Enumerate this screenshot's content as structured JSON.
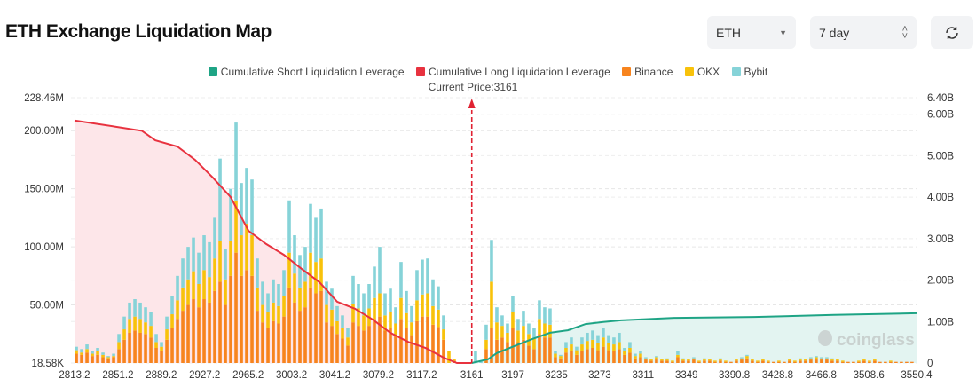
{
  "header": {
    "title": "ETH Exchange Liquidation Map",
    "coin_select": "ETH",
    "period_select": "7 day",
    "refresh_icon": "refresh-icon"
  },
  "watermark": "coinglass",
  "colors": {
    "short": "#1ea485",
    "long": "#e8323f",
    "binance": "#f7841e",
    "okx": "#f8c20b",
    "bybit": "#86d3d8"
  },
  "chart_data": {
    "type": "bar",
    "legend": [
      "Cumulative Short Liquidation Leverage",
      "Cumulative Long Liquidation Leverage",
      "Binance",
      "OKX",
      "Bybit"
    ],
    "legend_placement": "top",
    "current_price_label": "Current Price:3161",
    "current_price": 3161,
    "x_ticks": [
      "2813.2",
      "2851.2",
      "2889.2",
      "2927.2",
      "2965.2",
      "3003.2",
      "3041.2",
      "3079.2",
      "3117.2",
      "3161",
      "3197",
      "3235",
      "3273",
      "3311",
      "3349",
      "3390.8",
      "3428.8",
      "3466.8",
      "3508.6",
      "3550.4"
    ],
    "xlim": [
      2813.2,
      3550.4
    ],
    "y_left_ticks": [
      {
        "label": "228.46M",
        "value": 228.46
      },
      {
        "label": "200.00M",
        "value": 200
      },
      {
        "label": "150.00M",
        "value": 150
      },
      {
        "label": "100.00M",
        "value": 100
      },
      {
        "label": "50.00M",
        "value": 50
      },
      {
        "label": "18.58K",
        "value": 0
      }
    ],
    "y_left_unit": "M",
    "ylim_left": [
      0,
      228.46
    ],
    "y_right_ticks": [
      {
        "label": "6.40B",
        "value": 6.4
      },
      {
        "label": "6.00B",
        "value": 6.0
      },
      {
        "label": "5.00B",
        "value": 5.0
      },
      {
        "label": "4.00B",
        "value": 4.0
      },
      {
        "label": "3.00B",
        "value": 3.0
      },
      {
        "label": "2.00B",
        "value": 2.0
      },
      {
        "label": "1.00B",
        "value": 1.0
      },
      {
        "label": "0",
        "value": 0
      }
    ],
    "y_right_unit": "B",
    "ylim_right": [
      0,
      6.4
    ],
    "grid": true,
    "bar_price_start": 2814.8,
    "bar_price_step": 4.66,
    "bar_series_order": [
      "Binance",
      "OKX",
      "Bybit"
    ],
    "bars": [
      [
        8,
        3,
        3
      ],
      [
        7,
        2,
        3
      ],
      [
        9,
        3,
        4
      ],
      [
        6,
        2,
        2
      ],
      [
        7,
        3,
        3
      ],
      [
        5,
        2,
        2
      ],
      [
        4,
        1,
        1
      ],
      [
        5,
        1,
        2
      ],
      [
        12,
        6,
        7
      ],
      [
        20,
        9,
        11
      ],
      [
        26,
        12,
        14
      ],
      [
        28,
        12,
        15
      ],
      [
        26,
        12,
        14
      ],
      [
        25,
        10,
        13
      ],
      [
        22,
        10,
        12
      ],
      [
        13,
        5,
        7
      ],
      [
        10,
        4,
        4
      ],
      [
        20,
        9,
        11
      ],
      [
        30,
        12,
        16
      ],
      [
        38,
        16,
        21
      ],
      [
        45,
        20,
        25
      ],
      [
        50,
        22,
        28
      ],
      [
        55,
        24,
        29
      ],
      [
        48,
        20,
        27
      ],
      [
        55,
        25,
        30
      ],
      [
        52,
        22,
        30
      ],
      [
        62,
        28,
        35
      ],
      [
        70,
        35,
        71
      ],
      [
        50,
        22,
        26
      ],
      [
        75,
        30,
        45
      ],
      [
        95,
        45,
        67
      ],
      [
        75,
        35,
        45
      ],
      [
        80,
        40,
        48
      ],
      [
        75,
        35,
        48
      ],
      [
        45,
        20,
        25
      ],
      [
        35,
        15,
        20
      ],
      [
        30,
        14,
        16
      ],
      [
        36,
        16,
        20
      ],
      [
        34,
        15,
        19
      ],
      [
        40,
        18,
        22
      ],
      [
        65,
        30,
        45
      ],
      [
        52,
        25,
        33
      ],
      [
        45,
        20,
        28
      ],
      [
        48,
        22,
        30
      ],
      [
        65,
        30,
        42
      ],
      [
        60,
        27,
        38
      ],
      [
        62,
        28,
        43
      ],
      [
        35,
        15,
        20
      ],
      [
        32,
        14,
        18
      ],
      [
        25,
        11,
        13
      ],
      [
        21,
        9,
        11
      ],
      [
        15,
        7,
        8
      ],
      [
        35,
        16,
        24
      ],
      [
        32,
        15,
        21
      ],
      [
        28,
        13,
        19
      ],
      [
        32,
        15,
        21
      ],
      [
        38,
        18,
        27
      ],
      [
        40,
        20,
        40
      ],
      [
        28,
        13,
        19
      ],
      [
        30,
        14,
        20
      ],
      [
        23,
        11,
        14
      ],
      [
        38,
        18,
        31
      ],
      [
        30,
        13,
        19
      ],
      [
        24,
        11,
        14
      ],
      [
        36,
        18,
        26
      ],
      [
        40,
        19,
        30
      ],
      [
        40,
        20,
        30
      ],
      [
        33,
        16,
        23
      ],
      [
        31,
        15,
        20
      ],
      [
        20,
        9,
        12
      ],
      [
        0,
        10,
        0
      ],
      [
        2,
        1,
        0
      ],
      [
        0,
        0,
        0
      ],
      [
        0,
        0,
        0
      ],
      [
        0,
        0,
        0
      ],
      [
        0,
        0,
        10
      ],
      [
        0,
        0,
        2
      ],
      [
        12,
        8,
        13
      ],
      [
        30,
        40,
        36
      ],
      [
        20,
        15,
        13
      ],
      [
        22,
        10,
        9
      ],
      [
        18,
        8,
        8
      ],
      [
        30,
        14,
        14
      ],
      [
        18,
        10,
        10
      ],
      [
        20,
        12,
        13
      ],
      [
        15,
        10,
        9
      ],
      [
        12,
        9,
        9
      ],
      [
        25,
        13,
        16
      ],
      [
        22,
        12,
        14
      ],
      [
        22,
        11,
        14
      ],
      [
        5,
        3,
        2
      ],
      [
        4,
        2,
        1
      ],
      [
        9,
        4,
        5
      ],
      [
        10,
        6,
        6
      ],
      [
        7,
        4,
        3
      ],
      [
        10,
        6,
        6
      ],
      [
        12,
        7,
        7
      ],
      [
        13,
        7,
        8
      ],
      [
        11,
        6,
        7
      ],
      [
        14,
        8,
        8
      ],
      [
        11,
        6,
        7
      ],
      [
        10,
        6,
        6
      ],
      [
        12,
        6,
        8
      ],
      [
        7,
        3,
        3
      ],
      [
        9,
        4,
        5
      ],
      [
        4,
        2,
        2
      ],
      [
        5,
        3,
        2
      ],
      [
        3,
        1,
        1
      ],
      [
        2,
        1,
        0
      ],
      [
        3,
        2,
        1
      ],
      [
        2,
        1,
        0
      ],
      [
        2,
        1,
        1
      ],
      [
        1,
        1,
        0
      ],
      [
        5,
        2,
        3
      ],
      [
        2,
        1,
        1
      ],
      [
        2,
        1,
        0
      ],
      [
        3,
        1,
        1
      ],
      [
        1,
        1,
        0
      ],
      [
        2,
        1,
        1
      ],
      [
        2,
        1,
        0
      ],
      [
        1,
        1,
        0
      ],
      [
        2,
        1,
        1
      ],
      [
        1,
        1,
        0
      ],
      [
        1,
        0,
        0
      ],
      [
        2,
        1,
        0
      ],
      [
        3,
        1,
        1
      ],
      [
        4,
        2,
        1
      ],
      [
        2,
        1,
        0
      ],
      [
        1,
        1,
        0
      ],
      [
        2,
        1,
        0
      ],
      [
        1,
        1,
        0
      ],
      [
        1,
        0,
        0
      ],
      [
        1,
        1,
        0
      ],
      [
        1,
        0,
        0
      ],
      [
        2,
        1,
        0
      ],
      [
        1,
        1,
        0
      ],
      [
        2,
        1,
        1
      ],
      [
        2,
        1,
        0
      ],
      [
        3,
        1,
        1
      ],
      [
        3,
        2,
        1
      ],
      [
        3,
        1,
        1
      ],
      [
        3,
        1,
        1
      ],
      [
        2,
        1,
        1
      ],
      [
        2,
        1,
        0
      ],
      [
        1,
        1,
        0
      ],
      [
        1,
        0,
        0
      ],
      [
        1,
        0,
        0
      ],
      [
        1,
        1,
        0
      ],
      [
        2,
        1,
        0
      ],
      [
        1,
        1,
        0
      ],
      [
        2,
        1,
        0
      ],
      [
        1,
        0,
        0
      ],
      [
        1,
        0,
        0
      ],
      [
        1,
        1,
        0
      ],
      [
        1,
        0,
        0
      ],
      [
        1,
        0,
        0
      ],
      [
        1,
        0,
        0
      ],
      [
        1,
        0,
        0
      ]
    ],
    "series": [
      {
        "name": "Cumulative Long Liquidation Leverage",
        "axis": "right",
        "points": [
          [
            2813.2,
            5.85
          ],
          [
            2848.9,
            5.7
          ],
          [
            2872.2,
            5.6
          ],
          [
            2883.9,
            5.37
          ],
          [
            2903.3,
            5.22
          ],
          [
            2918.8,
            4.9
          ],
          [
            2934.4,
            4.47
          ],
          [
            2949.9,
            4.0
          ],
          [
            2965.5,
            3.19
          ],
          [
            2981,
            2.87
          ],
          [
            2996.5,
            2.61
          ],
          [
            3012.1,
            2.27
          ],
          [
            3027.6,
            1.95
          ],
          [
            3043.1,
            1.48
          ],
          [
            3058.7,
            1.31
          ],
          [
            3074.2,
            1.05
          ],
          [
            3089.7,
            0.73
          ],
          [
            3105.3,
            0.51
          ],
          [
            3120.8,
            0.36
          ],
          [
            3136.3,
            0.13
          ],
          [
            3148,
            0
          ],
          [
            3161,
            0
          ]
        ]
      },
      {
        "name": "Cumulative Short Liquidation Leverage",
        "axis": "right",
        "points": [
          [
            3161,
            0
          ],
          [
            3175.2,
            0.09
          ],
          [
            3183,
            0.24
          ],
          [
            3198.5,
            0.41
          ],
          [
            3214,
            0.58
          ],
          [
            3229.6,
            0.73
          ],
          [
            3245.1,
            0.79
          ],
          [
            3260.6,
            0.94
          ],
          [
            3276.2,
            0.99
          ],
          [
            3291.7,
            1.03
          ],
          [
            3338.3,
            1.09
          ],
          [
            3408.2,
            1.11
          ],
          [
            3478.1,
            1.16
          ],
          [
            3550.4,
            1.2
          ]
        ]
      }
    ]
  }
}
